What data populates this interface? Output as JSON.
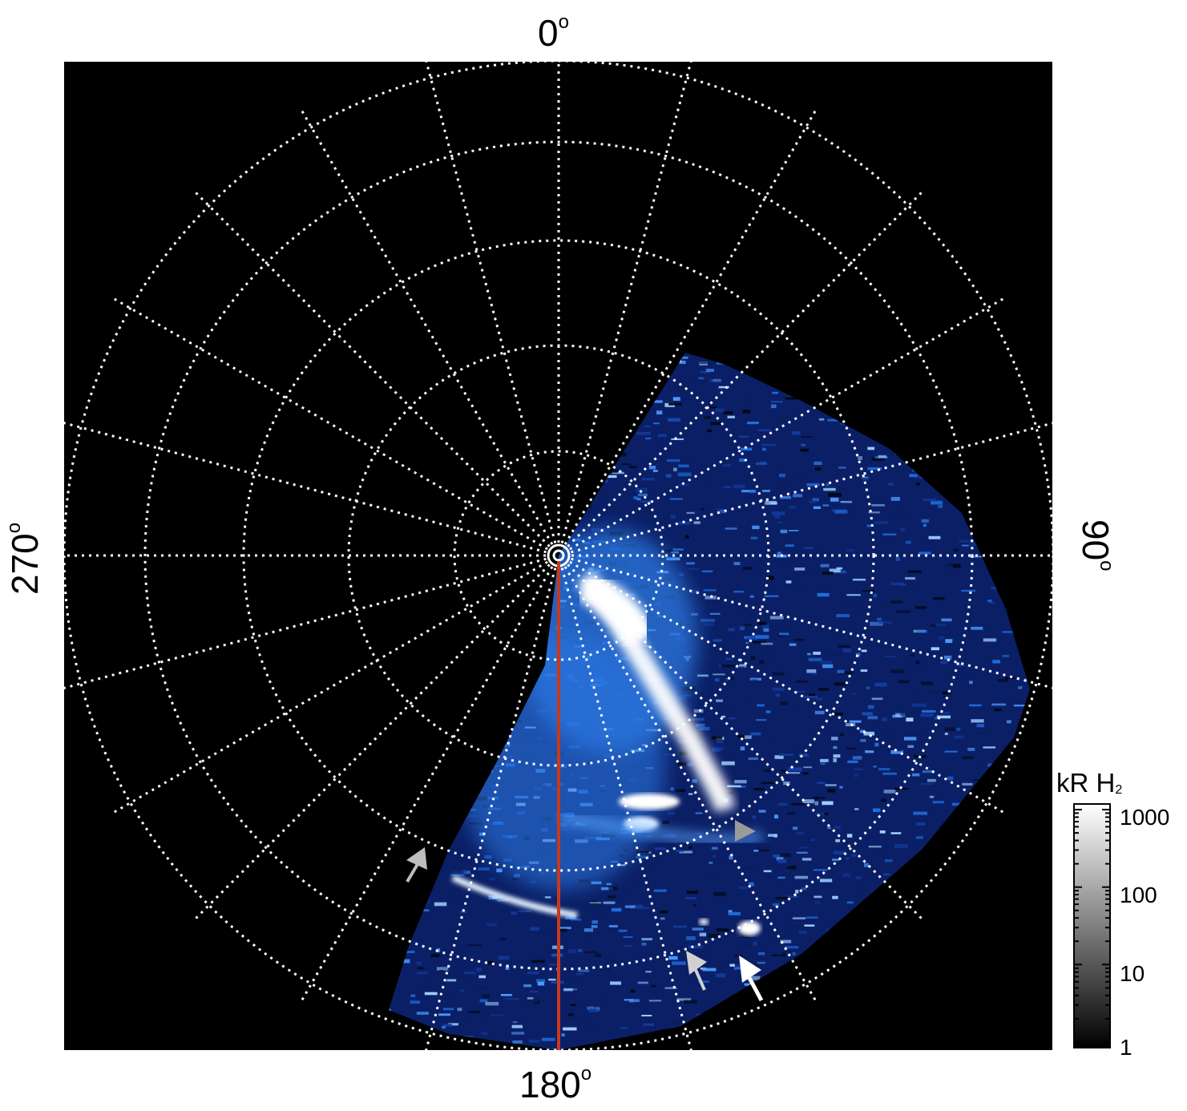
{
  "figure": {
    "background": "#000000",
    "grid_color": "#ffffff",
    "meridian_color": "#c8391a",
    "aurora_colors": [
      "#0a2a8a",
      "#1e6fe0",
      "#8ac6ff",
      "#ffffff"
    ]
  },
  "angle_labels": {
    "top": "0",
    "right": "90",
    "bottom": "180",
    "left": "270",
    "degree_symbol": "o"
  },
  "colorbar": {
    "title": "kR H",
    "title_subscript": "2",
    "ticks": [
      "1000",
      "100",
      "10",
      "1"
    ],
    "scale": "log"
  },
  "arrows": [
    {
      "name": "gray-arrow-left",
      "color": "#bdbdbd"
    },
    {
      "name": "gray-arrowhead-center",
      "color": "#9a9a9a"
    },
    {
      "name": "gray-arrow-bottom",
      "color": "#d0d0d0"
    },
    {
      "name": "white-arrow-bottom-right",
      "color": "#ffffff"
    }
  ]
}
